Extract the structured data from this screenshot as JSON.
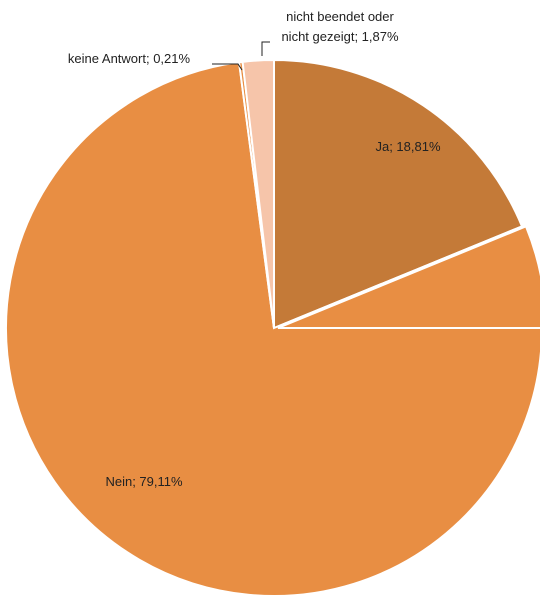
{
  "chart_data": {
    "type": "pie",
    "title": "",
    "slices": [
      {
        "label": "Ja",
        "value": 18.81,
        "value_text": "18,81%",
        "color": "#C47A38"
      },
      {
        "label": "Nein",
        "value": 79.11,
        "value_text": "79,11%",
        "color": "#E88E43"
      },
      {
        "label": "keine Antwort",
        "value": 0.21,
        "value_text": "0,21%",
        "color": "#E88E43"
      },
      {
        "label": "nicht beendet oder nicht gezeigt",
        "value": 1.87,
        "value_text": "1,87%",
        "color": "#F6C5AA"
      }
    ],
    "data_labels": [
      {
        "lines": [
          "Ja; 18,81%"
        ]
      },
      {
        "lines": [
          "Nein; 79,11%"
        ]
      },
      {
        "lines": [
          "keine Antwort; 0,21%"
        ]
      },
      {
        "lines": [
          "nicht beendet oder",
          "nicht gezeigt; 1,87%"
        ]
      }
    ],
    "legend": "none"
  }
}
